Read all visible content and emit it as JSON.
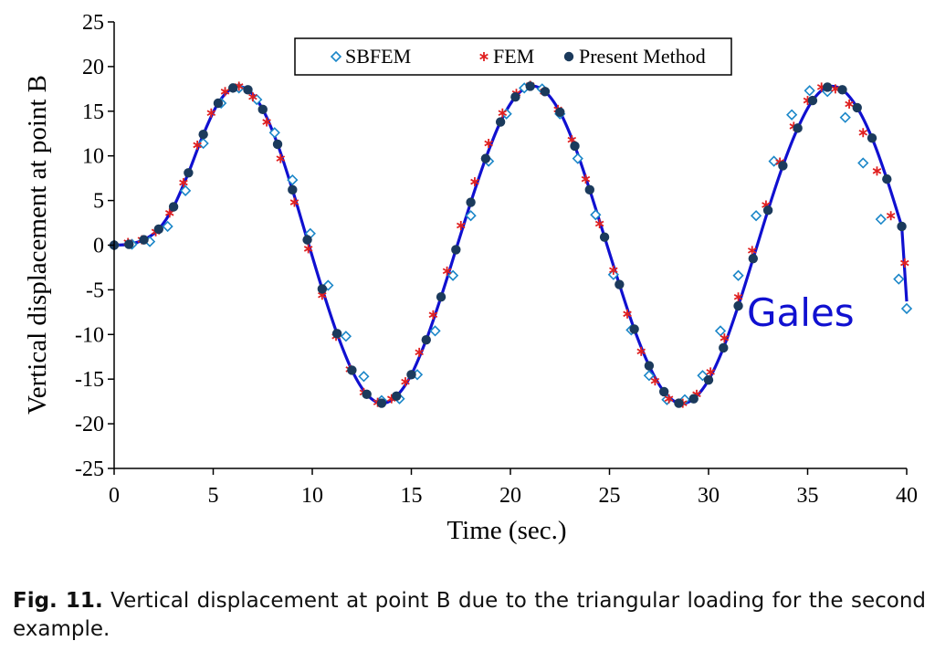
{
  "caption": {
    "label": "Fig. 11.",
    "text": " Vertical displacement at point B due to the triangular loading for the second example."
  },
  "colors": {
    "line": "#1010d0",
    "sbfem": "#1a86c8",
    "fem": "#e02020",
    "present": "#1b3a5c",
    "annotation": "#1010d0"
  },
  "chart_data": {
    "type": "line",
    "xlabel": "Time (sec.)",
    "ylabel": "Vertical displacement at point B",
    "xlim": [
      0,
      40
    ],
    "ylim": [
      -25,
      25
    ],
    "xticks": [
      0,
      5,
      10,
      15,
      20,
      25,
      30,
      35,
      40
    ],
    "yticks": [
      25,
      20,
      15,
      10,
      5,
      0,
      -5,
      -10,
      -15,
      -20,
      -25
    ],
    "grid": false,
    "legend_position": "top-center",
    "annotation": "Gales",
    "series": [
      {
        "name": "SBFEM",
        "marker": "diamond-open",
        "x": [
          0,
          0.9,
          1.8,
          2.7,
          3.6,
          4.5,
          5.4,
          6.3,
          7.2,
          8.1,
          9.0,
          9.9,
          10.8,
          11.7,
          12.6,
          13.5,
          14.4,
          15.3,
          16.2,
          17.1,
          18.0,
          18.9,
          19.8,
          20.7,
          21.6,
          22.5,
          23.4,
          24.3,
          25.2,
          26.1,
          27.0,
          27.9,
          28.8,
          29.7,
          30.6,
          31.5,
          32.4,
          33.3,
          34.2,
          35.1,
          36.0,
          36.9,
          37.8,
          38.7,
          39.6,
          40.0
        ],
        "y": [
          0,
          0.1,
          0.4,
          2.1,
          6.1,
          11.4,
          15.9,
          17.6,
          16.3,
          12.6,
          7.3,
          1.3,
          -4.5,
          -10.2,
          -14.7,
          -17.4,
          -17.2,
          -14.5,
          -9.6,
          -3.4,
          3.3,
          9.4,
          14.7,
          17.6,
          17.5,
          14.7,
          9.7,
          3.4,
          -3.3,
          -9.5,
          -14.6,
          -17.3,
          -17.3,
          -14.6,
          -9.6,
          -3.4,
          3.3,
          9.4,
          14.6,
          17.3,
          17.2,
          14.3,
          9.2,
          2.9,
          -3.8,
          -7.1
        ]
      },
      {
        "name": "FEM",
        "marker": "asterisk",
        "x": [
          0,
          0.7,
          1.4,
          2.1,
          2.8,
          3.5,
          4.2,
          4.9,
          5.6,
          6.3,
          7.0,
          7.7,
          8.4,
          9.1,
          9.8,
          10.5,
          11.2,
          11.9,
          12.6,
          13.3,
          14.0,
          14.7,
          15.4,
          16.1,
          16.8,
          17.5,
          18.2,
          18.9,
          19.6,
          20.3,
          21.0,
          21.7,
          22.4,
          23.1,
          23.8,
          24.5,
          25.2,
          25.9,
          26.6,
          27.3,
          28.0,
          28.7,
          29.4,
          30.1,
          30.8,
          31.5,
          32.2,
          32.9,
          33.6,
          34.3,
          35.0,
          35.7,
          36.4,
          37.1,
          37.8,
          38.5,
          39.2,
          39.9
        ],
        "y": [
          0,
          0.3,
          0.6,
          1.5,
          3.6,
          7.0,
          11.2,
          14.8,
          17.2,
          17.8,
          16.6,
          13.8,
          9.7,
          4.8,
          -0.4,
          -5.6,
          -10.2,
          -13.9,
          -16.5,
          -17.6,
          -17.2,
          -15.3,
          -12.0,
          -7.8,
          -2.9,
          2.2,
          7.1,
          11.4,
          14.8,
          17.0,
          17.9,
          17.2,
          15.2,
          11.8,
          7.4,
          2.4,
          -2.8,
          -7.7,
          -11.9,
          -15.2,
          -17.2,
          -17.7,
          -16.7,
          -14.2,
          -10.4,
          -5.8,
          -0.6,
          4.5,
          9.3,
          13.3,
          16.2,
          17.7,
          17.5,
          15.8,
          12.6,
          8.3,
          3.3,
          -2.0
        ]
      },
      {
        "name": "Present Method",
        "marker": "filled-circle",
        "x": [
          0,
          0.75,
          1.5,
          2.25,
          3.0,
          3.75,
          4.5,
          5.25,
          6.0,
          6.75,
          7.5,
          8.25,
          9.0,
          9.75,
          10.5,
          11.25,
          12.0,
          12.75,
          13.5,
          14.25,
          15.0,
          15.75,
          16.5,
          17.25,
          18.0,
          18.75,
          19.5,
          20.25,
          21.0,
          21.75,
          22.5,
          23.25,
          24.0,
          24.75,
          25.5,
          26.25,
          27.0,
          27.75,
          28.5,
          29.25,
          30.0,
          30.75,
          31.5,
          32.25,
          33.0,
          33.75,
          34.5,
          35.25,
          36.0,
          36.75,
          37.5,
          38.25,
          39.0,
          39.75
        ],
        "y": [
          0,
          0.1,
          0.6,
          1.8,
          4.3,
          8.1,
          12.4,
          15.9,
          17.6,
          17.4,
          15.2,
          11.3,
          6.2,
          0.6,
          -4.9,
          -9.9,
          -14.0,
          -16.7,
          -17.7,
          -16.9,
          -14.5,
          -10.6,
          -5.8,
          -0.5,
          4.8,
          9.7,
          13.8,
          16.6,
          17.8,
          17.2,
          14.9,
          11.1,
          6.2,
          0.9,
          -4.4,
          -9.4,
          -13.5,
          -16.4,
          -17.7,
          -17.2,
          -15.1,
          -11.5,
          -6.8,
          -1.5,
          3.9,
          8.9,
          13.1,
          16.2,
          17.7,
          17.4,
          15.4,
          12.0,
          7.4,
          2.1
        ]
      }
    ]
  }
}
